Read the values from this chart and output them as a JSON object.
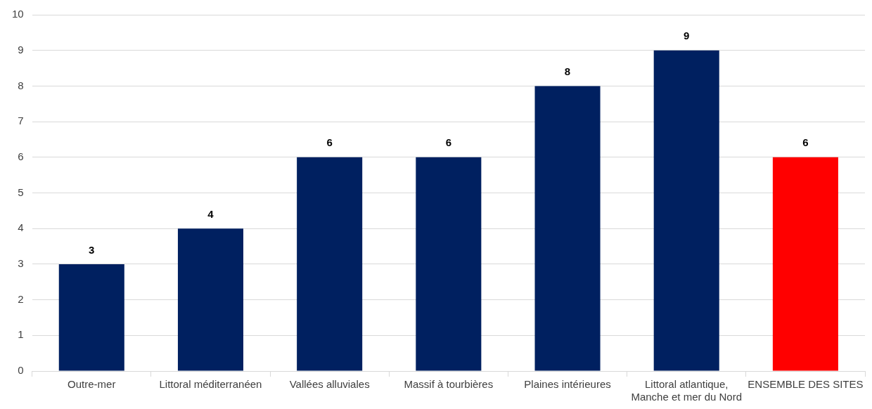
{
  "chart_data": {
    "type": "bar",
    "categories": [
      "Outre-mer",
      "Littoral méditerranéen",
      "Vallées alluviales",
      "Massif à tourbières",
      "Plaines intérieures",
      "Littoral atlantique, Manche et mer du Nord",
      "ENSEMBLE DES SITES"
    ],
    "values": [
      3,
      4,
      6,
      6,
      8,
      9,
      6
    ],
    "colors": [
      "#002060",
      "#002060",
      "#002060",
      "#002060",
      "#002060",
      "#002060",
      "#ff0000"
    ],
    "ylim": [
      0,
      10
    ],
    "yticks": [
      0,
      1,
      2,
      3,
      4,
      5,
      6,
      7,
      8,
      9,
      10
    ],
    "grid": "y",
    "legend": false,
    "data_labels": true
  }
}
